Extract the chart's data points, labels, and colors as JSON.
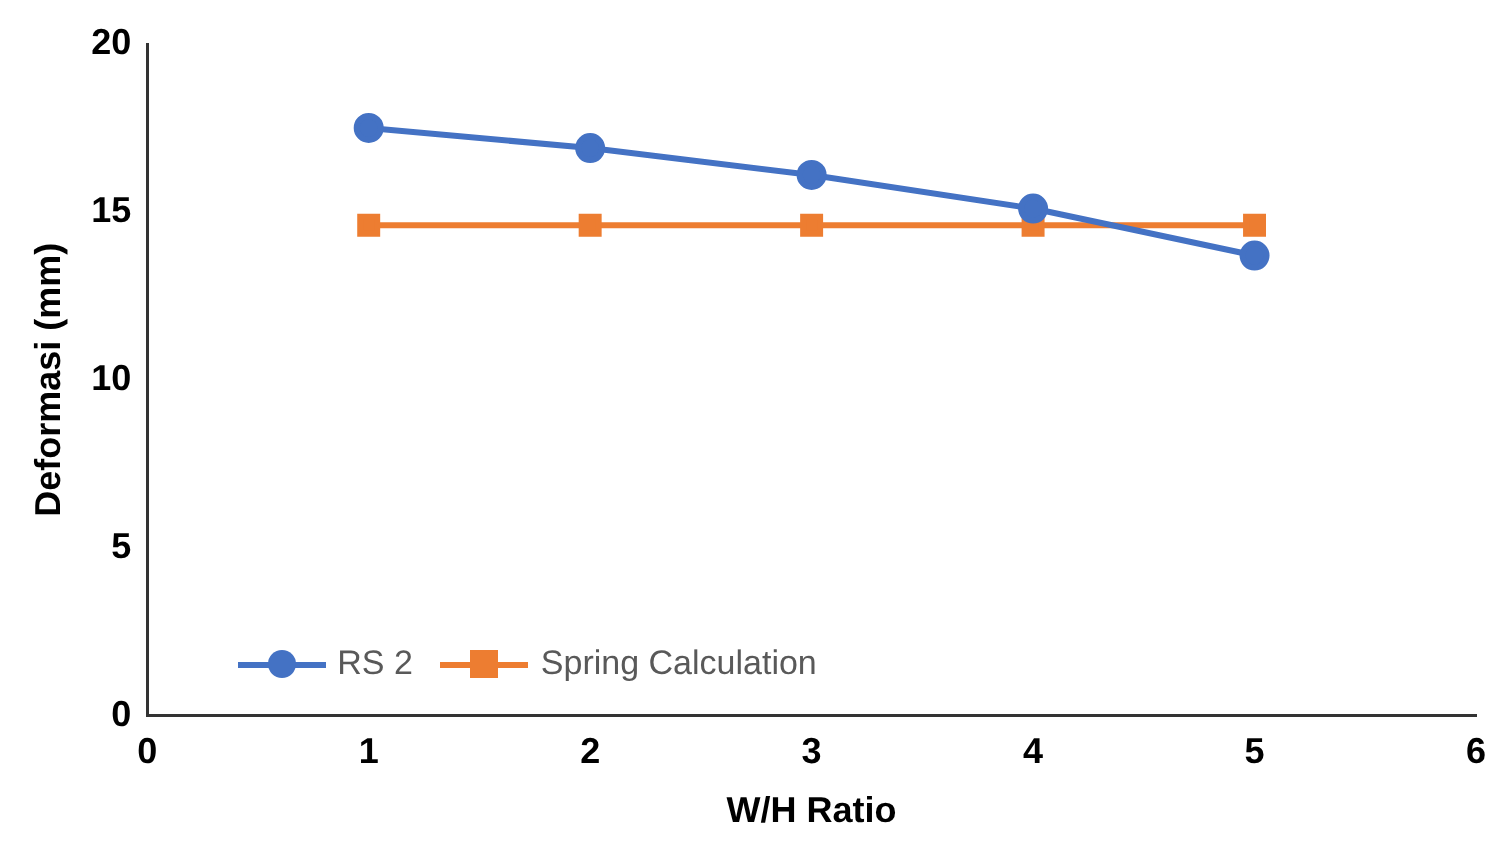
{
  "chart_data": {
    "type": "line",
    "xlabel": "W/H Ratio",
    "ylabel": "Deformasi (mm)",
    "x": [
      1,
      2,
      3,
      4,
      5
    ],
    "series": [
      {
        "name": "RS 2",
        "color": "#4472c4",
        "marker": "circle",
        "values": [
          17.5,
          16.9,
          16.1,
          15.1,
          13.7
        ]
      },
      {
        "name": "Spring Calculation",
        "color": "#ed7d31",
        "marker": "square",
        "values": [
          14.6,
          14.6,
          14.6,
          14.6,
          14.6
        ]
      }
    ],
    "xlim": [
      0,
      6
    ],
    "xticks": [
      0,
      1,
      2,
      3,
      4,
      5,
      6
    ],
    "ylim": [
      0,
      20
    ],
    "yticks": [
      0,
      5,
      10,
      15,
      20
    ],
    "grid": false,
    "legend": "bottom left"
  }
}
